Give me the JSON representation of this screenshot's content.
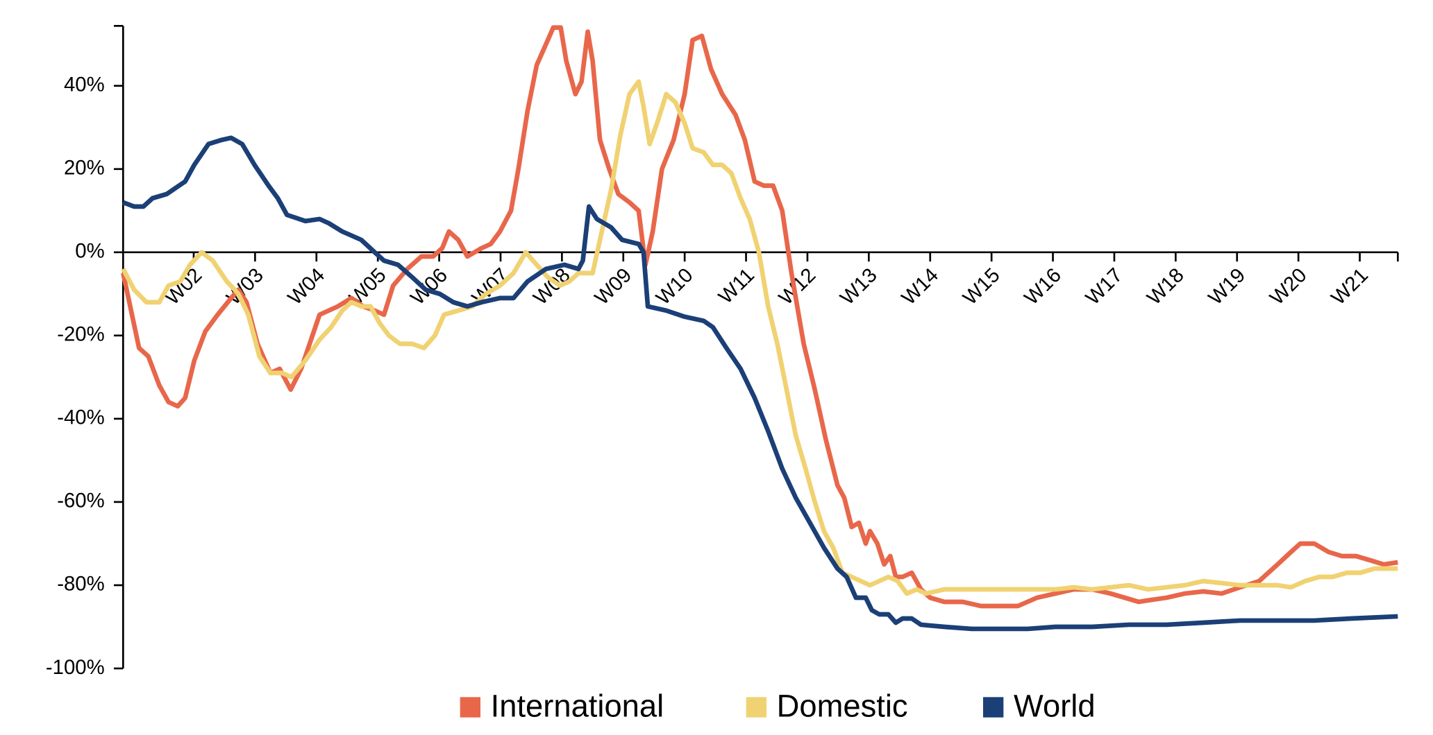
{
  "chart_data": {
    "type": "line",
    "xlim": [
      0.85,
      21.62
    ],
    "xticks": [
      {
        "value": 2,
        "label": "W02"
      },
      {
        "value": 3,
        "label": "W03"
      },
      {
        "value": 4,
        "label": "W04"
      },
      {
        "value": 5,
        "label": "W05"
      },
      {
        "value": 6,
        "label": "W06"
      },
      {
        "value": 7,
        "label": "W07"
      },
      {
        "value": 8,
        "label": "W08"
      },
      {
        "value": 9,
        "label": "W09"
      },
      {
        "value": 10,
        "label": "W10"
      },
      {
        "value": 11,
        "label": "W11"
      },
      {
        "value": 12,
        "label": "W12"
      },
      {
        "value": 13,
        "label": "W13"
      },
      {
        "value": 14,
        "label": "W14"
      },
      {
        "value": 15,
        "label": "W15"
      },
      {
        "value": 16,
        "label": "W16"
      },
      {
        "value": 17,
        "label": "W17"
      },
      {
        "value": 18,
        "label": "W18"
      },
      {
        "value": 19,
        "label": "W19"
      },
      {
        "value": 20,
        "label": "W20"
      },
      {
        "value": 21,
        "label": "W21"
      }
    ],
    "ylim": [
      -100,
      54.4
    ],
    "yticks": [
      {
        "value": -100,
        "label": "-100%"
      },
      {
        "value": -80,
        "label": "-80%"
      },
      {
        "value": -60,
        "label": "-60%"
      },
      {
        "value": -40,
        "label": "-40%"
      },
      {
        "value": -20,
        "label": "-20%"
      },
      {
        "value": 0,
        "label": "0%"
      },
      {
        "value": 20,
        "label": "20%"
      },
      {
        "value": 40,
        "label": "40%"
      }
    ],
    "legend": "bottom",
    "series": [
      {
        "name": "International",
        "color": "#e8674a",
        "x": [
          0.85,
          1.11,
          1.26,
          1.44,
          1.59,
          1.74,
          1.86,
          2.01,
          2.19,
          2.39,
          2.61,
          2.73,
          2.86,
          3.04,
          3.25,
          3.4,
          3.58,
          3.75,
          4.05,
          4.35,
          4.57,
          4.76,
          4.95,
          5.1,
          5.25,
          5.48,
          5.71,
          5.9,
          6.05,
          6.16,
          6.31,
          6.46,
          6.69,
          6.84,
          6.99,
          7.17,
          7.29,
          7.44,
          7.59,
          7.74,
          7.86,
          7.98,
          8.07,
          8.22,
          8.32,
          8.42,
          8.5,
          8.62,
          8.77,
          8.92,
          9.1,
          9.25,
          9.36,
          9.48,
          9.63,
          9.82,
          10.0,
          10.13,
          10.28,
          10.43,
          10.61,
          10.83,
          10.98,
          11.14,
          11.29,
          11.44,
          11.59,
          11.74,
          11.94,
          12.12,
          12.3,
          12.49,
          12.6,
          12.72,
          12.84,
          12.95,
          13.02,
          13.14,
          13.25,
          13.35,
          13.44,
          13.55,
          13.7,
          13.85,
          14.0,
          14.23,
          14.53,
          14.83,
          15.13,
          15.43,
          15.74,
          16.04,
          16.34,
          16.64,
          16.94,
          17.17,
          17.4,
          17.62,
          17.85,
          18.15,
          18.45,
          18.75,
          19.05,
          19.36,
          19.66,
          19.88,
          20.03,
          20.26,
          20.49,
          20.71,
          20.94,
          21.17,
          21.39,
          21.62
        ],
        "values": [
          -5,
          -23,
          -25,
          -32,
          -36,
          -37,
          -35,
          -26,
          -19,
          -15,
          -11,
          -9,
          -12,
          -22,
          -29,
          -28,
          -33,
          -28,
          -15,
          -13,
          -11,
          -13,
          -14,
          -15,
          -8,
          -4,
          -1,
          -1,
          1,
          5,
          3,
          -1,
          1,
          2,
          5,
          10,
          20,
          34,
          45,
          50,
          54,
          54,
          46,
          38,
          41,
          53,
          46,
          27,
          20,
          14,
          12,
          10,
          -3,
          5,
          20,
          27,
          38,
          51,
          52,
          44,
          38,
          33,
          27,
          17,
          16,
          16,
          10,
          -5,
          -22,
          -33,
          -45,
          -56,
          -59,
          -66,
          -65,
          -70,
          -67,
          -70,
          -75,
          -73,
          -78,
          -78,
          -77,
          -81,
          -83,
          -84,
          -84,
          -85,
          -85,
          -85,
          -83,
          -82,
          -81,
          -81,
          -82,
          -83,
          -84,
          -83.5,
          -83,
          -82,
          -81.5,
          -82,
          -80.5,
          -79,
          -75,
          -72,
          -70,
          -70,
          -72,
          -73,
          -73,
          -74,
          -75,
          -74.5
        ]
      },
      {
        "name": "Domestic",
        "color": "#f0d272",
        "x": [
          0.85,
          1.03,
          1.23,
          1.44,
          1.59,
          1.78,
          1.94,
          2.13,
          2.31,
          2.54,
          2.73,
          2.89,
          3.07,
          3.25,
          3.44,
          3.59,
          3.82,
          4.05,
          4.24,
          4.42,
          4.57,
          4.73,
          4.88,
          5.03,
          5.18,
          5.36,
          5.56,
          5.75,
          5.93,
          6.08,
          6.31,
          6.54,
          6.76,
          6.99,
          7.21,
          7.41,
          7.59,
          7.77,
          7.97,
          8.12,
          8.27,
          8.5,
          8.65,
          8.8,
          8.95,
          9.1,
          9.25,
          9.33,
          9.43,
          9.55,
          9.7,
          9.85,
          10.0,
          10.13,
          10.31,
          10.46,
          10.61,
          10.76,
          10.91,
          11.06,
          11.21,
          11.36,
          11.51,
          11.66,
          11.81,
          11.97,
          12.12,
          12.27,
          12.42,
          12.57,
          12.72,
          12.87,
          13.02,
          13.17,
          13.32,
          13.47,
          13.62,
          13.78,
          13.93,
          14.23,
          14.53,
          14.83,
          15.13,
          15.43,
          15.74,
          16.04,
          16.34,
          16.64,
          16.94,
          17.24,
          17.55,
          17.85,
          18.15,
          18.45,
          18.75,
          19.05,
          19.36,
          19.66,
          19.88,
          20.11,
          20.34,
          20.56,
          20.79,
          21.01,
          21.24,
          21.62
        ],
        "values": [
          -4,
          -9,
          -12,
          -12,
          -8,
          -7,
          -3,
          0,
          -2,
          -7,
          -10,
          -15,
          -25,
          -29,
          -29,
          -30,
          -26,
          -21,
          -18,
          -14,
          -12,
          -13,
          -13,
          -17,
          -20,
          -22,
          -22,
          -23,
          -20,
          -15,
          -14,
          -13,
          -10,
          -8,
          -5,
          0,
          -3,
          -6,
          -8,
          -7,
          -5,
          -5,
          5,
          15,
          28,
          38,
          41,
          35,
          26,
          31,
          38,
          36,
          31,
          25,
          24,
          21,
          21,
          19,
          13,
          8,
          0,
          -13,
          -22,
          -33,
          -44,
          -52,
          -60,
          -67,
          -71,
          -77,
          -78,
          -79,
          -80,
          -79,
          -78,
          -79,
          -82,
          -81,
          -82,
          -81,
          -81,
          -81,
          -81,
          -81,
          -81,
          -81,
          -80.5,
          -81,
          -80.5,
          -80,
          -81,
          -80.5,
          -80,
          -79,
          -79.5,
          -80,
          -80,
          -80,
          -80.5,
          -79,
          -78,
          -78,
          -77,
          -77,
          -76,
          -76
        ]
      },
      {
        "name": "World",
        "color": "#1b3f77",
        "x": [
          0.85,
          1.03,
          1.18,
          1.33,
          1.56,
          1.86,
          2.01,
          2.24,
          2.46,
          2.61,
          2.79,
          2.99,
          3.22,
          3.37,
          3.52,
          3.82,
          4.05,
          4.2,
          4.42,
          4.73,
          4.95,
          5.1,
          5.33,
          5.56,
          5.78,
          6.01,
          6.23,
          6.46,
          6.69,
          6.99,
          7.21,
          7.44,
          7.74,
          8.04,
          8.27,
          8.34,
          8.44,
          8.57,
          8.8,
          8.98,
          9.25,
          9.33,
          9.4,
          9.7,
          10.0,
          10.31,
          10.46,
          10.68,
          10.91,
          11.14,
          11.36,
          11.59,
          11.81,
          12.04,
          12.27,
          12.49,
          12.64,
          12.79,
          12.95,
          13.05,
          13.17,
          13.32,
          13.44,
          13.55,
          13.7,
          13.85,
          14.23,
          14.68,
          15.13,
          15.59,
          16.04,
          16.64,
          17.24,
          17.85,
          18.45,
          19.05,
          19.66,
          20.26,
          20.86,
          21.62
        ],
        "values": [
          12,
          11,
          11,
          13,
          14,
          17,
          21,
          26,
          27,
          27.5,
          26,
          21,
          16,
          13,
          9,
          7.5,
          8,
          7,
          5,
          3,
          0,
          -2,
          -3,
          -6,
          -9,
          -10,
          -12,
          -13,
          -12,
          -11,
          -11,
          -7,
          -4,
          -3,
          -4,
          -2,
          11,
          8,
          6,
          3,
          2,
          0,
          -13,
          -14,
          -15.5,
          -16.5,
          -18,
          -23,
          -28,
          -35,
          -43,
          -52,
          -59,
          -65,
          -71,
          -76,
          -78,
          -83,
          -83,
          -86,
          -87,
          -87,
          -89,
          -88,
          -88,
          -89.5,
          -90,
          -90.5,
          -90.5,
          -90.5,
          -90,
          -90,
          -89.5,
          -89.5,
          -89,
          -88.5,
          -88.5,
          -88.5,
          -88,
          -87.5
        ]
      }
    ]
  }
}
